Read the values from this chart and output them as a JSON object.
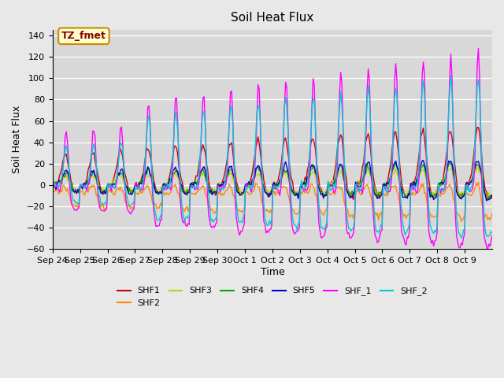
{
  "title": "Soil Heat Flux",
  "xlabel": "Time",
  "ylabel": "Soil Heat Flux",
  "annotation": "TZ_fmet",
  "ylim": [
    -60,
    145
  ],
  "yticks": [
    -60,
    -40,
    -20,
    0,
    20,
    40,
    60,
    80,
    100,
    120,
    140
  ],
  "xtick_labels": [
    "Sep 24",
    "Sep 25",
    "Sep 26",
    "Sep 27",
    "Sep 28",
    "Sep 29",
    "Sep 30",
    "Oct 1",
    "Oct 2",
    "Oct 3",
    "Oct 4",
    "Oct 5",
    "Oct 6",
    "Oct 7",
    "Oct 8",
    "Oct 9"
  ],
  "series_colors": {
    "SHF1": "#cc0000",
    "SHF2": "#ff8800",
    "SHF3": "#cccc00",
    "SHF4": "#00aa00",
    "SHF5": "#0000cc",
    "SHF_1": "#ff00ff",
    "SHF_2": "#00cccc"
  },
  "bg_color": "#e8e8e8",
  "plot_bg_color": "#d8d8d8",
  "grid_color": "#ffffff",
  "annotation_bg": "#ffffcc",
  "annotation_border": "#cc8800"
}
